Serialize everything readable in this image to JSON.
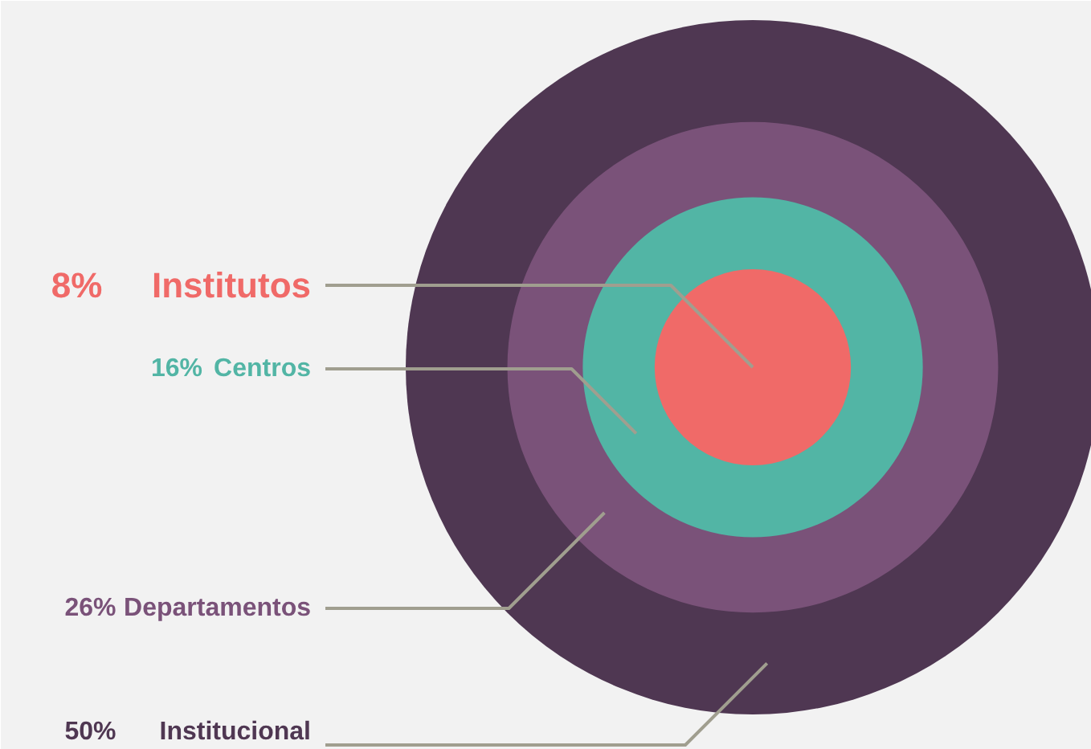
{
  "chart_data": {
    "type": "other",
    "categories": [
      "Institutos",
      "Centros",
      "Departamentos",
      "Institucional"
    ],
    "values": [
      8,
      16,
      26,
      50
    ],
    "value_labels": [
      "8%",
      "16%",
      "26%",
      "50%"
    ],
    "colors": [
      "#f06a68",
      "#52b5a5",
      "#7a5279",
      "#4f3752"
    ]
  }
}
